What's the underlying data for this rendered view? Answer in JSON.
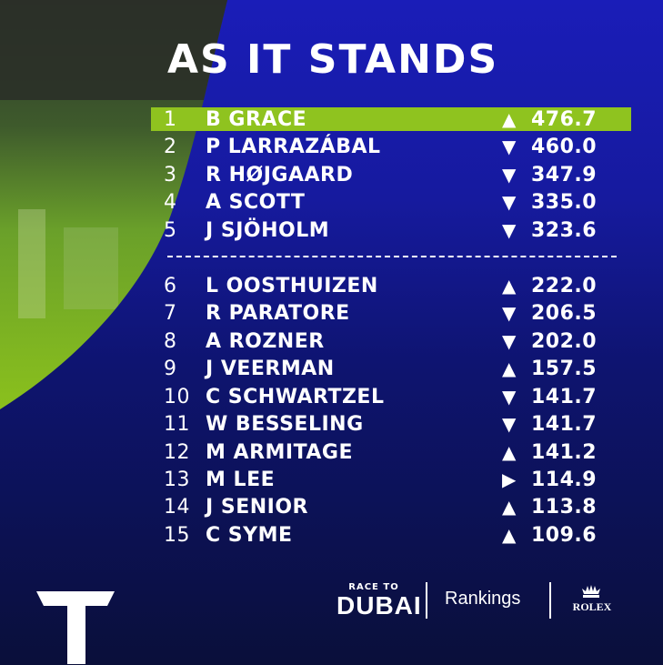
{
  "title": "AS IT STANDS",
  "rankings": [
    {
      "pos": "1",
      "name": "B GRACE",
      "trend": "up",
      "points": "476.7",
      "highlight": true
    },
    {
      "pos": "2",
      "name": "P LARRAZÁBAL",
      "trend": "down",
      "points": "460.0"
    },
    {
      "pos": "3",
      "name": "R HØJGAARD",
      "trend": "down",
      "points": "347.9"
    },
    {
      "pos": "4",
      "name": "A SCOTT",
      "trend": "down",
      "points": "335.0"
    },
    {
      "pos": "5",
      "name": "J SJÖHOLM",
      "trend": "down",
      "points": "323.6"
    },
    {
      "pos": "6",
      "name": "L OOSTHUIZEN",
      "trend": "up",
      "points": "222.0"
    },
    {
      "pos": "7",
      "name": "R PARATORE",
      "trend": "down",
      "points": "206.5"
    },
    {
      "pos": "8",
      "name": "A ROZNER",
      "trend": "down",
      "points": "202.0"
    },
    {
      "pos": "9",
      "name": "J VEERMAN",
      "trend": "up",
      "points": "157.5"
    },
    {
      "pos": "10",
      "name": "C SCHWARTZEL",
      "trend": "down",
      "points": "141.7"
    },
    {
      "pos": "11",
      "name": "W BESSELING",
      "trend": "down",
      "points": "141.7"
    },
    {
      "pos": "12",
      "name": "M ARMITAGE",
      "trend": "up",
      "points": "141.2"
    },
    {
      "pos": "13",
      "name": "M LEE",
      "trend": "same",
      "points": "114.9"
    },
    {
      "pos": "14",
      "name": "J SENIOR",
      "trend": "up",
      "points": "113.8"
    },
    {
      "pos": "15",
      "name": "C SYME",
      "trend": "up",
      "points": "109.6"
    }
  ],
  "trend_symbols": {
    "up": "▲",
    "down": "▼",
    "same": "▶"
  },
  "footer": {
    "race_to": "RACE TO",
    "dubai": "DUBAI",
    "rankings_label": "Rankings",
    "rolex": "ROLEX"
  },
  "colors": {
    "highlight": "#8fc31f",
    "background_top": "#1a1db8",
    "background_bottom": "#0a0f3a",
    "text": "#ffffff"
  }
}
